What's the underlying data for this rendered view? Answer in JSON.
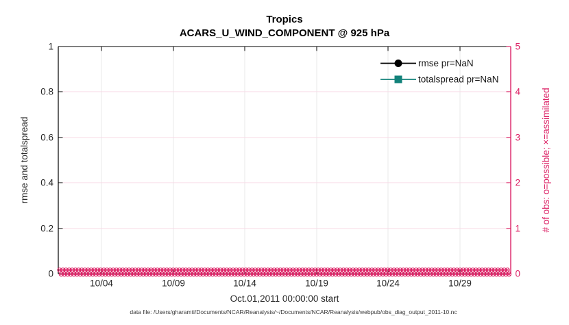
{
  "figure": {
    "kind": "MATLAB-style observation diagnostics plot",
    "background": "#FFFFFF"
  },
  "colors": {
    "left_axis": "#000000",
    "right_axis_pink": "#DC2165",
    "grid_vertical_gray": "#E9E9E9",
    "grid_horizontal_pink": "#F7D9E6",
    "rmse_black": "#000000",
    "totalspread_teal": "#12827A",
    "tick_text": "#262626",
    "footer_text": "#3A3A3A"
  },
  "chart_data": {
    "type": "line",
    "title_lines": [
      "Tropics",
      "ACARS_U_WIND_COMPONENT @ 925 hPa"
    ],
    "xlabel": "Oct.01,2011 00:00:00 start",
    "ylabel_left": "rmse and totalspread",
    "ylabel_right": "# of obs: o=possible; ×=assimilated",
    "x_tick_labels": [
      "10/04",
      "10/09",
      "10/14",
      "10/19",
      "10/24",
      "10/29"
    ],
    "x_range_note": "Oct 01 2011 through end of October 2011, daily time steps",
    "y_left_tick_labels": [
      "0",
      "0.2",
      "0.4",
      "0.6",
      "0.8",
      "1"
    ],
    "y_left_range": [
      0,
      1
    ],
    "y_right_tick_labels": [
      "0",
      "1",
      "2",
      "3",
      "4",
      "5"
    ],
    "y_right_range": [
      0,
      5
    ],
    "grid": true,
    "legend_position": "top-right inside, no box",
    "series": [
      {
        "name": "rmse pr=NaN",
        "marker": "filled-circle",
        "color": "#000000",
        "values": "NaN at all times (no curve drawn)"
      },
      {
        "name": "totalspread pr=NaN",
        "marker": "filled-square",
        "color": "#12827A",
        "values": "NaN at all times (no curve drawn)"
      }
    ],
    "obs_band": {
      "description": "number of observations on right axis: o = possible, × = assimilated; both constant 0 across entire time range",
      "color": "#DC2165",
      "value": 0,
      "markers": [
        "o",
        "×"
      ]
    },
    "footer": "data file: /Users/gharamti/Documents/NCAR/Reanalysis/~/Documents/NCAR/Reanalysis/webpub/obs_diag_output_2011-10.nc"
  }
}
